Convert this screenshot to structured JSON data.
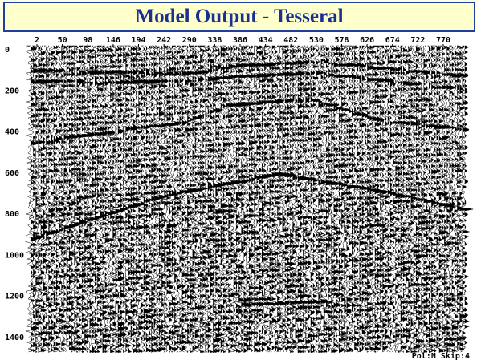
{
  "title": "Model Output - Tesseral",
  "x_axis": {
    "labels": [
      "2",
      "50",
      "98",
      "146",
      "194",
      "242",
      "290",
      "338",
      "386",
      "434",
      "482",
      "530",
      "578",
      "626",
      "674",
      "722",
      "770"
    ]
  },
  "y_axis": {
    "labels": [
      "0",
      "200",
      "400",
      "600",
      "800",
      "1000",
      "1200",
      "1400"
    ]
  },
  "status": "Pol:N Skip:4"
}
